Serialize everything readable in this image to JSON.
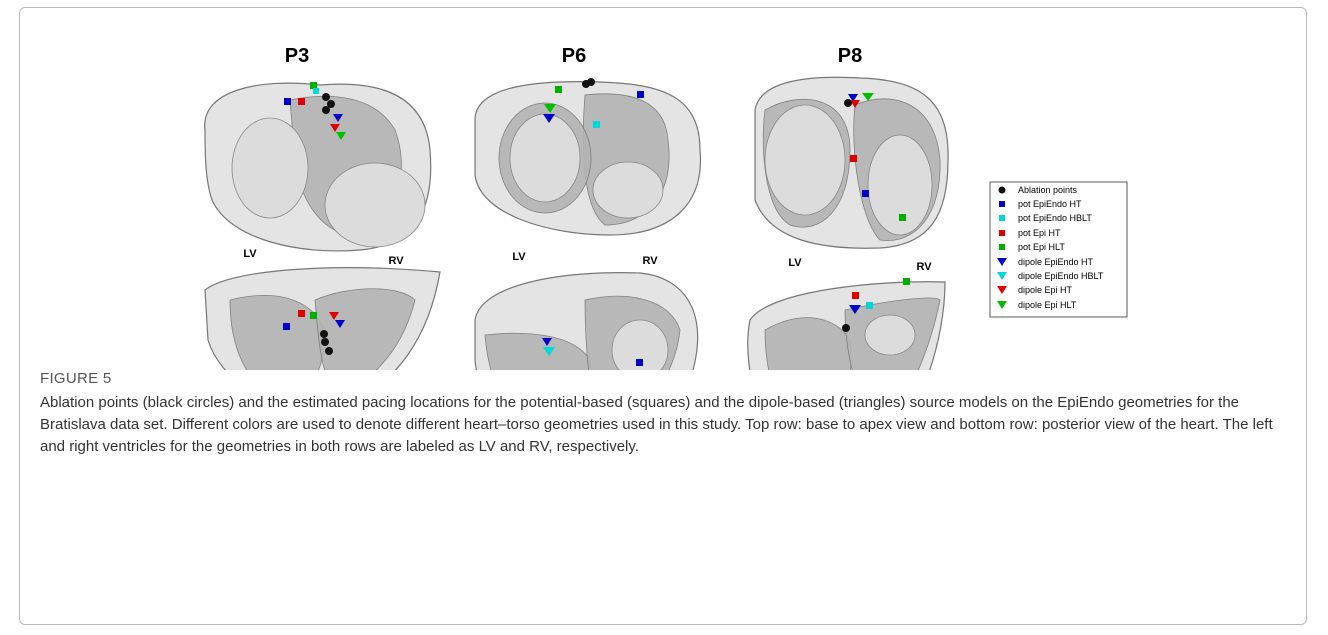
{
  "figure": {
    "panels": [
      {
        "title": "P3",
        "lv": "LV",
        "rv": "RV"
      },
      {
        "title": "P6",
        "lv": "LV",
        "rv": "RV"
      },
      {
        "title": "P8",
        "lv": "LV",
        "rv": "RV"
      }
    ],
    "legend": [
      "Ablation points",
      "pot EpiEndo HT",
      "pot EpiEndo HBLT",
      "pot Epi HT",
      "pot Epi HLT",
      "dipole EpiEndo HT",
      "dipole EpiEndo HBLT",
      "dipole Epi HT",
      "dipole Epi HLT"
    ],
    "label": "FIGURE 5",
    "caption": "Ablation points (black circles) and the estimated pacing locations for the potential-based (squares) and the dipole-based (triangles) source models on the EpiEndo geometries for the Bratislava data set. Different colors are used to denote different heart–torso geometries used in this study. Top row: base to apex view and bottom row: posterior view of the heart. The left and right ventricles for the geometries in both rows are labeled as LV and RV, respectively."
  }
}
